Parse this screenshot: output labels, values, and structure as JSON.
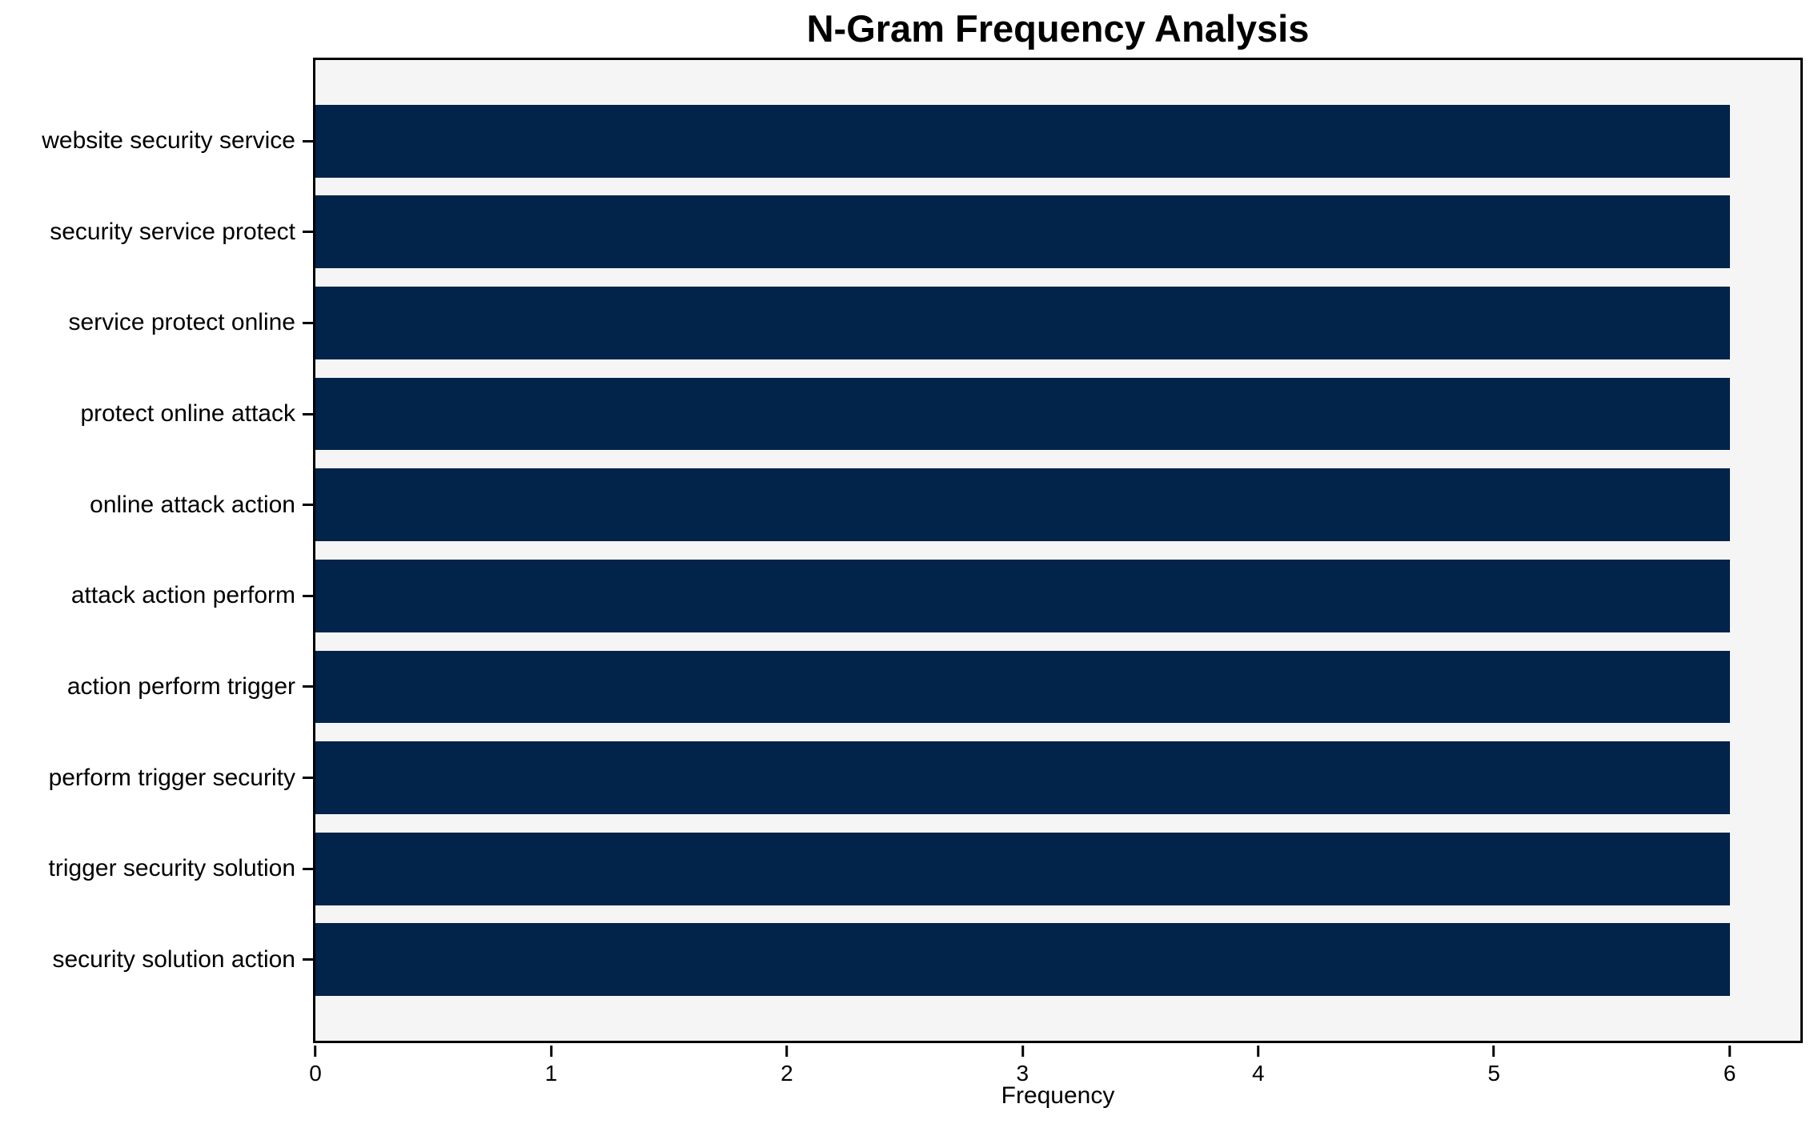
{
  "chart_data": {
    "type": "bar",
    "orientation": "horizontal",
    "title": "N-Gram Frequency Analysis",
    "xlabel": "Frequency",
    "ylabel": "",
    "categories": [
      "website security service",
      "security service protect",
      "service protect online",
      "protect online attack",
      "online attack action",
      "attack action perform",
      "action perform trigger",
      "perform trigger security",
      "trigger security solution",
      "security solution action"
    ],
    "values": [
      6,
      6,
      6,
      6,
      6,
      6,
      6,
      6,
      6,
      6
    ],
    "xticks": [
      0,
      1,
      2,
      3,
      4,
      5,
      6
    ],
    "xlim": [
      0,
      6.3
    ],
    "bar_color": "#02234a",
    "plot_background": "#f5f5f6",
    "figure_background": "#ffffff",
    "spine_color": "#000000",
    "text_color": "#000000",
    "grid": false,
    "legend": false
  }
}
